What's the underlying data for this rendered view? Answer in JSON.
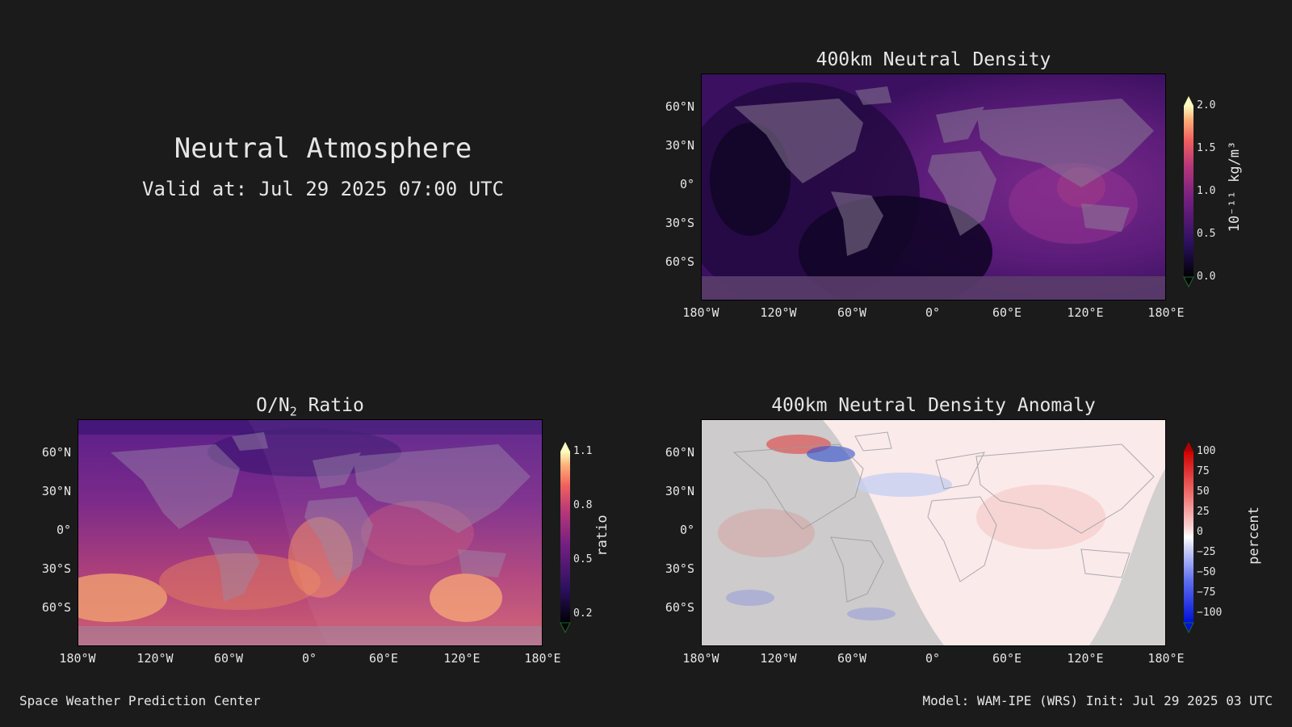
{
  "header": {
    "title": "Neutral Atmosphere",
    "valid_at": "Valid at: Jul 29 2025 07:00 UTC"
  },
  "axes": {
    "lat_ticks": [
      "60°N",
      "30°N",
      "0°",
      "30°S",
      "60°S"
    ],
    "lon_ticks": [
      "180°W",
      "120°W",
      "60°W",
      "0°",
      "60°E",
      "120°E",
      "180°E"
    ]
  },
  "panels": {
    "density": {
      "title": "400km Neutral Density",
      "cbar_ticks": [
        "2.0",
        "1.5",
        "1.0",
        "0.5",
        "0.0"
      ],
      "cbar_label": "10⁻¹¹ kg/m³",
      "cbar_range": [
        0.0,
        2.0
      ],
      "colormap": "magma"
    },
    "ratio": {
      "title_main": "O/N",
      "title_sub": "2",
      "title_rest": " Ratio",
      "cbar_ticks": [
        "1.1",
        "0.8",
        "0.5",
        "0.2"
      ],
      "cbar_label": "ratio",
      "cbar_range": [
        0.2,
        1.1
      ],
      "colormap": "magma"
    },
    "anomaly": {
      "title": "400km Neutral Density Anomaly",
      "cbar_ticks": [
        "100",
        "75",
        "50",
        "25",
        "0",
        "−25",
        "−50",
        "−75",
        "−100"
      ],
      "cbar_label": "percent",
      "cbar_range": [
        -100,
        100
      ],
      "colormap": "bwr"
    }
  },
  "footer": {
    "left": "Space Weather Prediction Center",
    "right": "Model: WAM-IPE (WRS) Init: Jul 29 2025 03 UTC"
  }
}
